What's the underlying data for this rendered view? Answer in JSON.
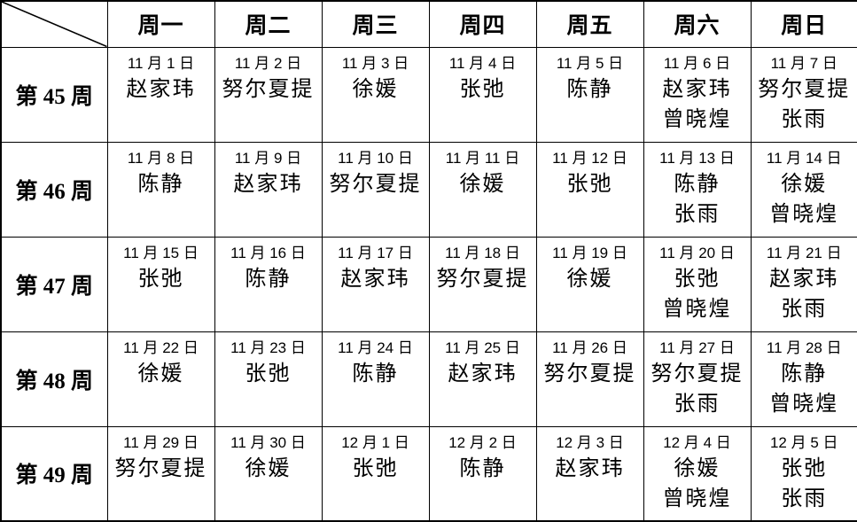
{
  "table": {
    "corner_label": "",
    "colors": {
      "border": "#000000",
      "text": "#000000",
      "background": "#ffffff"
    },
    "day_headers": [
      {
        "id": "mon",
        "label": "周一"
      },
      {
        "id": "tue",
        "label": "周二"
      },
      {
        "id": "wed",
        "label": "周三"
      },
      {
        "id": "thu",
        "label": "周四"
      },
      {
        "id": "fri",
        "label": "周五"
      },
      {
        "id": "sat",
        "label": "周六"
      },
      {
        "id": "sun",
        "label": "周日"
      }
    ],
    "rows": [
      {
        "week": "第 45 周",
        "cells": [
          {
            "date": "11 月 1 日",
            "names": [
              "赵家玮"
            ]
          },
          {
            "date": "11 月 2 日",
            "names": [
              "努尔夏提"
            ]
          },
          {
            "date": "11 月 3 日",
            "names": [
              "徐媛"
            ]
          },
          {
            "date": "11 月 4 日",
            "names": [
              "张弛"
            ]
          },
          {
            "date": "11 月 5 日",
            "names": [
              "陈静"
            ]
          },
          {
            "date": "11 月 6 日",
            "names": [
              "赵家玮",
              "曾晓煌"
            ]
          },
          {
            "date": "11 月 7 日",
            "names": [
              "努尔夏提",
              "张雨"
            ]
          }
        ]
      },
      {
        "week": "第 46 周",
        "cells": [
          {
            "date": "11 月 8 日",
            "names": [
              "陈静"
            ]
          },
          {
            "date": "11 月 9 日",
            "names": [
              "赵家玮"
            ]
          },
          {
            "date": "11 月 10 日",
            "names": [
              "努尔夏提"
            ]
          },
          {
            "date": "11 月 11 日",
            "names": [
              "徐媛"
            ]
          },
          {
            "date": "11 月 12 日",
            "names": [
              "张弛"
            ]
          },
          {
            "date": "11 月 13 日",
            "names": [
              "陈静",
              "张雨"
            ]
          },
          {
            "date": "11 月 14 日",
            "names": [
              "徐媛",
              "曾晓煌"
            ]
          }
        ]
      },
      {
        "week": "第 47 周",
        "cells": [
          {
            "date": "11 月 15 日",
            "names": [
              "张弛"
            ]
          },
          {
            "date": "11 月 16 日",
            "names": [
              "陈静"
            ]
          },
          {
            "date": "11 月 17 日",
            "names": [
              "赵家玮"
            ]
          },
          {
            "date": "11 月 18 日",
            "names": [
              "努尔夏提"
            ]
          },
          {
            "date": "11 月 19 日",
            "names": [
              "徐媛"
            ]
          },
          {
            "date": "11 月 20 日",
            "names": [
              "张弛",
              "曾晓煌"
            ]
          },
          {
            "date": "11 月 21 日",
            "names": [
              "赵家玮",
              "张雨"
            ]
          }
        ]
      },
      {
        "week": "第 48 周",
        "cells": [
          {
            "date": "11 月 22 日",
            "names": [
              "徐媛"
            ]
          },
          {
            "date": "11 月 23 日",
            "names": [
              "张弛"
            ]
          },
          {
            "date": "11 月 24 日",
            "names": [
              "陈静"
            ]
          },
          {
            "date": "11 月 25 日",
            "names": [
              "赵家玮"
            ]
          },
          {
            "date": "11 月 26 日",
            "names": [
              "努尔夏提"
            ]
          },
          {
            "date": "11 月 27 日",
            "names": [
              "努尔夏提",
              "张雨"
            ]
          },
          {
            "date": "11 月 28 日",
            "names": [
              "陈静",
              "曾晓煌"
            ]
          }
        ]
      },
      {
        "week": "第 49 周",
        "cells": [
          {
            "date": "11 月 29 日",
            "names": [
              "努尔夏提"
            ]
          },
          {
            "date": "11 月 30 日",
            "names": [
              "徐媛"
            ]
          },
          {
            "date": "12 月 1 日",
            "names": [
              "张弛"
            ]
          },
          {
            "date": "12 月 2 日",
            "names": [
              "陈静"
            ]
          },
          {
            "date": "12 月 3 日",
            "names": [
              "赵家玮"
            ]
          },
          {
            "date": "12 月 4 日",
            "names": [
              "徐媛",
              "曾晓煌"
            ]
          },
          {
            "date": "12 月 5 日",
            "names": [
              "张弛",
              "张雨"
            ]
          }
        ]
      }
    ]
  }
}
